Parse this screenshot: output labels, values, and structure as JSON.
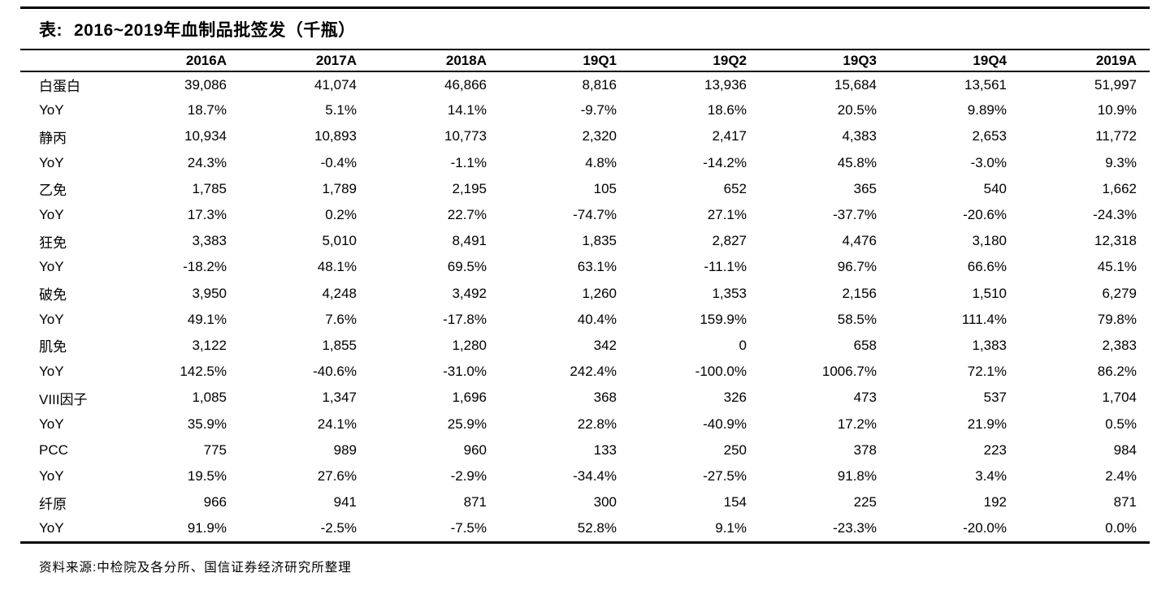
{
  "title": {
    "prefix": "表:",
    "text": "2016~2019年血制品批签发（千瓶）"
  },
  "source_note": "资料来源:中检院及各分所、国信证券经济研究所整理",
  "colors": {
    "text": "#000000",
    "background": "#ffffff",
    "rule": "#000000"
  },
  "chart_data": {
    "type": "table",
    "title": "2016~2019年血制品批签发（千瓶）",
    "columns": [
      "",
      "2016A",
      "2017A",
      "2018A",
      "19Q1",
      "19Q2",
      "19Q3",
      "19Q4",
      "2019A"
    ],
    "rows": [
      [
        "白蛋白",
        "39,086",
        "41,074",
        "46,866",
        "8,816",
        "13,936",
        "15,684",
        "13,561",
        "51,997"
      ],
      [
        "YoY",
        "18.7%",
        "5.1%",
        "14.1%",
        "-9.7%",
        "18.6%",
        "20.5%",
        "9.89%",
        "10.9%"
      ],
      [
        "静丙",
        "10,934",
        "10,893",
        "10,773",
        "2,320",
        "2,417",
        "4,383",
        "2,653",
        "11,772"
      ],
      [
        "YoY",
        "24.3%",
        "-0.4%",
        "-1.1%",
        "4.8%",
        "-14.2%",
        "45.8%",
        "-3.0%",
        "9.3%"
      ],
      [
        "乙免",
        "1,785",
        "1,789",
        "2,195",
        "105",
        "652",
        "365",
        "540",
        "1,662"
      ],
      [
        "YoY",
        "17.3%",
        "0.2%",
        "22.7%",
        "-74.7%",
        "27.1%",
        "-37.7%",
        "-20.6%",
        "-24.3%"
      ],
      [
        "狂免",
        "3,383",
        "5,010",
        "8,491",
        "1,835",
        "2,827",
        "4,476",
        "3,180",
        "12,318"
      ],
      [
        "YoY",
        "-18.2%",
        "48.1%",
        "69.5%",
        "63.1%",
        "-11.1%",
        "96.7%",
        "66.6%",
        "45.1%"
      ],
      [
        "破免",
        "3,950",
        "4,248",
        "3,492",
        "1,260",
        "1,353",
        "2,156",
        "1,510",
        "6,279"
      ],
      [
        "YoY",
        "49.1%",
        "7.6%",
        "-17.8%",
        "40.4%",
        "159.9%",
        "58.5%",
        "111.4%",
        "79.8%"
      ],
      [
        "肌免",
        "3,122",
        "1,855",
        "1,280",
        "342",
        "0",
        "658",
        "1,383",
        "2,383"
      ],
      [
        "YoY",
        "142.5%",
        "-40.6%",
        "-31.0%",
        "242.4%",
        "-100.0%",
        "1006.7%",
        "72.1%",
        "86.2%"
      ],
      [
        "VIII因子",
        "1,085",
        "1,347",
        "1,696",
        "368",
        "326",
        "473",
        "537",
        "1,704"
      ],
      [
        "YoY",
        "35.9%",
        "24.1%",
        "25.9%",
        "22.8%",
        "-40.9%",
        "17.2%",
        "21.9%",
        "0.5%"
      ],
      [
        "PCC",
        "775",
        "989",
        "960",
        "133",
        "250",
        "378",
        "223",
        "984"
      ],
      [
        "YoY",
        "19.5%",
        "27.6%",
        "-2.9%",
        "-34.4%",
        "-27.5%",
        "91.8%",
        "3.4%",
        "2.4%"
      ],
      [
        "纤原",
        "966",
        "941",
        "871",
        "300",
        "154",
        "225",
        "192",
        "871"
      ],
      [
        "YoY",
        "91.9%",
        "-2.5%",
        "-7.5%",
        "52.8%",
        "9.1%",
        "-23.3%",
        "-20.0%",
        "0.0%"
      ]
    ]
  }
}
